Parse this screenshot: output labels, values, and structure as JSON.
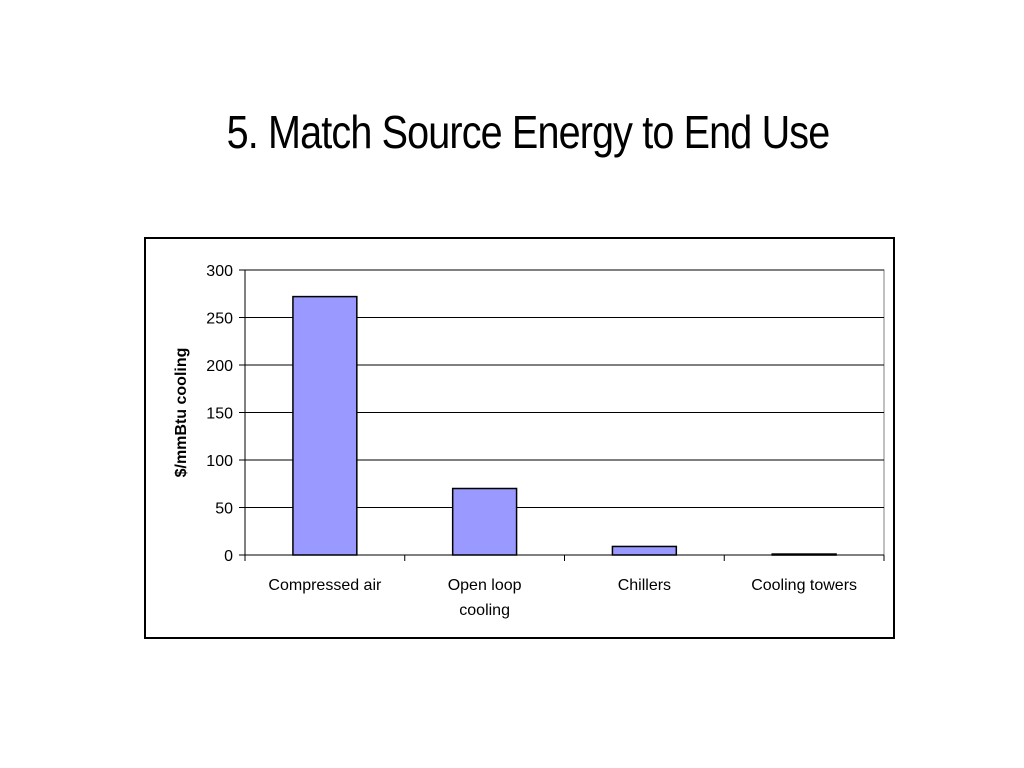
{
  "slide": {
    "title": "5. Match Source Energy to End Use"
  },
  "colors": {
    "bar_fill": "#9999ff",
    "bar_stroke": "#000000",
    "plot_background": "#ffffff",
    "gridline": "#000000"
  },
  "chart_data": {
    "type": "bar",
    "title": "",
    "xlabel": "",
    "ylabel": "$/mmBtu cooling",
    "categories": [
      [
        "Compressed air"
      ],
      [
        "Open loop",
        "cooling"
      ],
      [
        "Chillers"
      ],
      [
        "Cooling towers"
      ]
    ],
    "values": [
      272,
      70,
      9,
      1
    ],
    "ylim": [
      0,
      300
    ],
    "yticks": [
      0,
      50,
      100,
      150,
      200,
      250,
      300
    ],
    "grid": true,
    "legend": "none"
  }
}
